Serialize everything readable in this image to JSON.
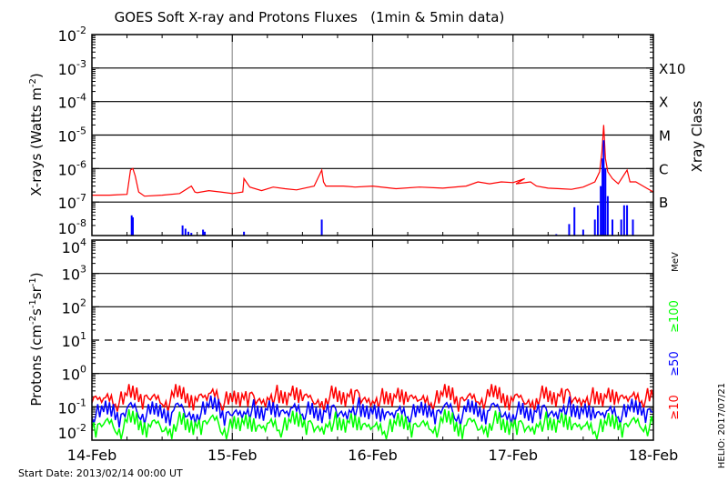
{
  "chart_data": [
    {
      "type": "line",
      "title": "GOES Soft X-ray and Protons Fluxes   (1min & 5min data)",
      "ylabel": "X-rays (Watts m-2)",
      "ylabel_parts": {
        "base": "X-rays (Watts m",
        "sup": "-2",
        "end": ")"
      },
      "yscale": "log",
      "ylim": [
        1e-08,
        0.01
      ],
      "yticks": [
        {
          "base": "10",
          "exp": "-2"
        },
        {
          "base": "10",
          "exp": "-3"
        },
        {
          "base": "10",
          "exp": "-4"
        },
        {
          "base": "10",
          "exp": "-5"
        },
        {
          "base": "10",
          "exp": "-6"
        },
        {
          "base": "10",
          "exp": "-7"
        },
        {
          "base": "10",
          "exp": "-8"
        }
      ],
      "x_unit": "hours since start date",
      "xlim": [
        0,
        96
      ],
      "class_axis_label": "Xray Class",
      "class_labels": [
        {
          "label": "X10",
          "value": 0.001
        },
        {
          "label": "X",
          "value": 0.0001
        },
        {
          "label": "M",
          "value": 1e-05
        },
        {
          "label": "C",
          "value": 1e-06
        },
        {
          "label": "B",
          "value": 1e-07
        }
      ],
      "grid": "horizontal at class levels, vertical at day boundaries",
      "series": [
        {
          "color": "#ff0000",
          "x": [
            0,
            3,
            6,
            6.6,
            7,
            7.4,
            8,
            9,
            12,
            15,
            17,
            17.6,
            18,
            20,
            22,
            24,
            25.8,
            26,
            27,
            29,
            31,
            33,
            35,
            38,
            39.3,
            39.6,
            40,
            41,
            43,
            45,
            48,
            52,
            56,
            60,
            64,
            66,
            68,
            70,
            72,
            74,
            72.5,
            75,
            76,
            78,
            80,
            82,
            84,
            86,
            86.8,
            87.2,
            87.5,
            87.8,
            88.2,
            89,
            90,
            91.5,
            92,
            93,
            95,
            96
          ],
          "y": [
            1.6e-07,
            1.6e-07,
            1.7e-07,
            9e-07,
            1e-06,
            6e-07,
            2e-07,
            1.5e-07,
            1.6e-07,
            1.8e-07,
            3e-07,
            2e-07,
            1.9e-07,
            2.2e-07,
            2e-07,
            1.8e-07,
            2e-07,
            5e-07,
            2.8e-07,
            2.2e-07,
            2.8e-07,
            2.5e-07,
            2.3e-07,
            3e-07,
            9e-07,
            4e-07,
            3e-07,
            3e-07,
            3e-07,
            2.8e-07,
            3e-07,
            2.5e-07,
            2.8e-07,
            2.6e-07,
            3e-07,
            4e-07,
            3.5e-07,
            4e-07,
            3.8e-07,
            5e-07,
            3.5e-07,
            4e-07,
            3e-07,
            2.6e-07,
            2.5e-07,
            2.4e-07,
            2.8e-07,
            4e-07,
            8e-07,
            3e-06,
            2e-05,
            2e-06,
            8e-07,
            5e-07,
            3.5e-07,
            9e-07,
            4e-07,
            4e-07,
            2.5e-07,
            2e-07
          ]
        },
        {
          "color": "#0000ff",
          "spikes": [
            [
              6.8,
              4e-08
            ],
            [
              7,
              3.5e-08
            ],
            [
              15.5,
              2e-08
            ],
            [
              16,
              1.6e-08
            ],
            [
              16.5,
              1.3e-08
            ],
            [
              17,
              1.2e-08
            ],
            [
              19,
              1.5e-08
            ],
            [
              19.3,
              1.3e-08
            ],
            [
              26,
              1.3e-08
            ],
            [
              39.3,
              3e-08
            ],
            [
              79.4,
              1.1e-08
            ],
            [
              81.6,
              2.2e-08
            ],
            [
              82.5,
              7e-08
            ],
            [
              84,
              1.5e-08
            ],
            [
              86,
              3e-08
            ],
            [
              86.5,
              8e-08
            ],
            [
              87,
              3e-07
            ],
            [
              87.3,
              2e-06
            ],
            [
              87.5,
              7e-06
            ],
            [
              87.8,
              1e-06
            ],
            [
              88.2,
              1.5e-07
            ],
            [
              89,
              3e-08
            ],
            [
              90.5,
              3e-08
            ],
            [
              91,
              8e-08
            ],
            [
              91.5,
              8e-08
            ],
            [
              92.5,
              3e-08
            ]
          ]
        }
      ]
    },
    {
      "type": "line",
      "ylabel_parts": {
        "base": "Protons (cm",
        "sup1": "-2",
        "mid": "s",
        "sup2": "-1",
        "mid2": "sr",
        "sup3": "-1",
        "end": ")"
      },
      "yscale": "log",
      "ylim": [
        0.01,
        10000.0
      ],
      "yticks": [
        {
          "base": "10",
          "exp": "4"
        },
        {
          "base": "10",
          "exp": "3"
        },
        {
          "base": "10",
          "exp": "2"
        },
        {
          "base": "10",
          "exp": "1"
        },
        {
          "base": "10",
          "exp": "0"
        },
        {
          "base": "10",
          "exp": "-1"
        },
        {
          "base": "10",
          "exp": "-2"
        }
      ],
      "dashed_line_at": 10,
      "unit_label": "MeV",
      "xticks": [
        "14-Feb",
        "15-Feb",
        "16-Feb",
        "17-Feb",
        "18-Feb"
      ],
      "xlim": [
        0,
        96
      ],
      "series": [
        {
          "name": "≥10",
          "color": "#ff0000",
          "y": [
            0.13,
            0.18,
            0.12,
            0.22,
            0.14,
            0.16,
            0.12,
            0.2,
            0.13,
            0.15,
            0.25,
            0.12,
            0.14,
            0.17,
            0.12,
            0.19,
            0.13,
            0.22,
            0.15,
            0.12,
            0.18,
            0.14,
            0.2,
            0.13,
            0.15,
            0.12,
            0.19,
            0.14,
            0.16,
            0.13,
            0.22,
            0.12,
            0.17,
            0.14,
            0.2,
            0.13,
            0.15,
            0.12,
            0.18,
            0.14,
            0.21,
            0.13,
            0.16,
            0.12,
            0.19,
            0.14,
            0.2,
            0.15,
            0.17
          ]
        },
        {
          "name": "≥50",
          "color": "#0000ff",
          "y": [
            0.05,
            0.07,
            0.04,
            0.09,
            0.05,
            0.06,
            0.045,
            0.08,
            0.05,
            0.06,
            0.1,
            0.045,
            0.055,
            0.07,
            0.045,
            0.08,
            0.05,
            0.09,
            0.06,
            0.045,
            0.07,
            0.05,
            0.08,
            0.05,
            0.06,
            0.045,
            0.075,
            0.05,
            0.065,
            0.05,
            0.09,
            0.045,
            0.07,
            0.05,
            0.08,
            0.05,
            0.06,
            0.045,
            0.07,
            0.05,
            0.085,
            0.05,
            0.065,
            0.045,
            0.075,
            0.05,
            0.08,
            0.055,
            0.07
          ]
        },
        {
          "name": "≥100",
          "color": "#00ff00",
          "y": [
            0.02,
            0.03,
            0.018,
            0.035,
            0.02,
            0.025,
            0.018,
            0.03,
            0.02,
            0.024,
            0.038,
            0.018,
            0.022,
            0.03,
            0.018,
            0.032,
            0.02,
            0.035,
            0.024,
            0.018,
            0.03,
            0.02,
            0.033,
            0.02,
            0.025,
            0.018,
            0.03,
            0.02,
            0.026,
            0.02,
            0.035,
            0.018,
            0.028,
            0.02,
            0.032,
            0.02,
            0.024,
            0.018,
            0.03,
            0.02,
            0.034,
            0.02,
            0.026,
            0.018,
            0.03,
            0.02,
            0.032,
            0.022,
            0.028
          ]
        }
      ]
    }
  ],
  "footer": {
    "start_date": "Start Date: 2013/02/14 00:00 UT",
    "helio": "HELIO: 2017/07/21"
  }
}
